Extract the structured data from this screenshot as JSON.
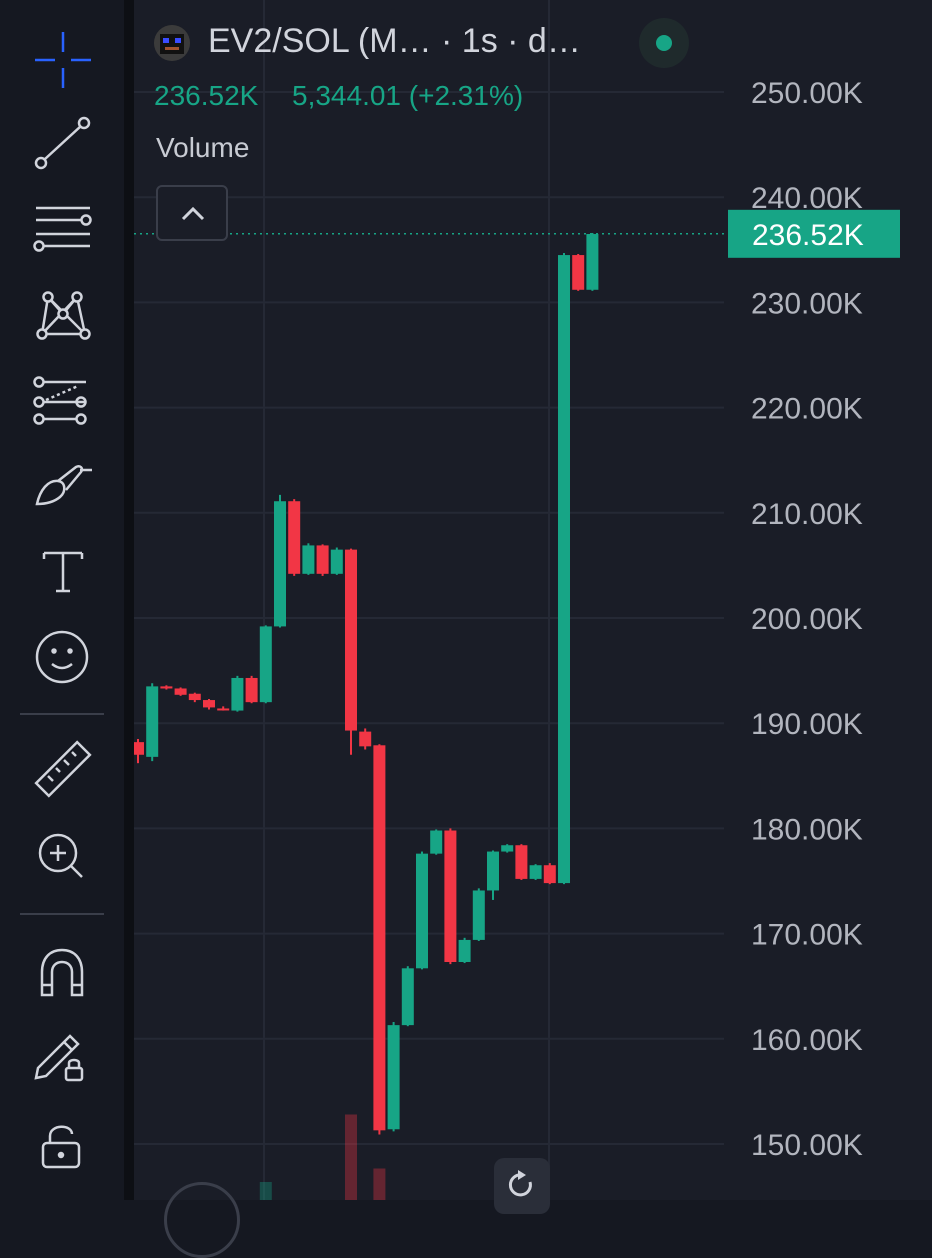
{
  "header": {
    "title": "EV2/SOL (M… · 1s · d…",
    "price": "236.52K",
    "change": "5,344.01 (+2.31%)",
    "volume_label": "Volume",
    "live_color": "#17a586"
  },
  "toolbar": {
    "tools": [
      "crosshair-icon",
      "trend-line-icon",
      "horizontal-lines-icon",
      "pattern-icon",
      "fib-lines-icon",
      "brush-icon",
      "text-icon",
      "emoji-icon",
      "ruler-icon",
      "zoom-in-icon",
      "magnet-icon",
      "lock-drawings-icon",
      "unlock-icon"
    ]
  },
  "colors": {
    "up": "#17a586",
    "down": "#f23645",
    "accent": "#2962ff",
    "background": "#1a1d27"
  },
  "chart_data": {
    "type": "candlestick",
    "symbol": "EV2/SOL",
    "interval": "1s",
    "last_price": 236520,
    "last_price_label": "236.52K",
    "y_ticks": [
      "250.00K",
      "240.00K",
      "230.00K",
      "220.00K",
      "210.00K",
      "200.00K",
      "190.00K",
      "180.00K",
      "170.00K",
      "160.00K",
      "150.00K"
    ],
    "y_tick_values": [
      250000,
      240000,
      230000,
      220000,
      210000,
      200000,
      190000,
      180000,
      170000,
      160000,
      150000
    ],
    "ylim": [
      145000,
      258000
    ],
    "grid": true,
    "candles": [
      {
        "o": 188200,
        "h": 188500,
        "c": 187000,
        "l": 186200
      },
      {
        "o": 186800,
        "h": 193800,
        "c": 193500,
        "l": 186400
      },
      {
        "o": 193500,
        "h": 193600,
        "c": 193300,
        "l": 193200
      },
      {
        "o": 193300,
        "h": 193400,
        "c": 192700,
        "l": 192600
      },
      {
        "o": 192800,
        "h": 192900,
        "c": 192200,
        "l": 192000
      },
      {
        "o": 192200,
        "h": 192300,
        "c": 191500,
        "l": 191300
      },
      {
        "o": 191400,
        "h": 191600,
        "c": 191300,
        "l": 191200
      },
      {
        "o": 191200,
        "h": 194500,
        "c": 194300,
        "l": 191100
      },
      {
        "o": 194300,
        "h": 194500,
        "c": 192000,
        "l": 191900
      },
      {
        "o": 192000,
        "h": 199300,
        "c": 199200,
        "l": 191900
      },
      {
        "o": 199200,
        "h": 211700,
        "c": 211100,
        "l": 199100
      },
      {
        "o": 211100,
        "h": 211300,
        "c": 204200,
        "l": 204000
      },
      {
        "o": 204200,
        "h": 207100,
        "c": 206900,
        "l": 204100
      },
      {
        "o": 206900,
        "h": 207000,
        "c": 204200,
        "l": 204000
      },
      {
        "o": 204200,
        "h": 206700,
        "c": 206500,
        "l": 204100
      },
      {
        "o": 206500,
        "h": 206600,
        "c": 189300,
        "l": 187000
      },
      {
        "o": 189200,
        "h": 189500,
        "c": 187800,
        "l": 187500
      },
      {
        "o": 187900,
        "h": 188000,
        "c": 151300,
        "l": 150900
      },
      {
        "o": 151400,
        "h": 161600,
        "c": 161300,
        "l": 151200
      },
      {
        "o": 161300,
        "h": 166900,
        "c": 166700,
        "l": 161200
      },
      {
        "o": 166700,
        "h": 177800,
        "c": 177600,
        "l": 166600
      },
      {
        "o": 177600,
        "h": 179900,
        "c": 179800,
        "l": 177500
      },
      {
        "o": 179800,
        "h": 180000,
        "c": 167300,
        "l": 167100
      },
      {
        "o": 167300,
        "h": 169600,
        "c": 169400,
        "l": 167200
      },
      {
        "o": 169400,
        "h": 174300,
        "c": 174100,
        "l": 169300
      },
      {
        "o": 174100,
        "h": 177900,
        "c": 177800,
        "l": 173200
      },
      {
        "o": 177800,
        "h": 178500,
        "c": 178400,
        "l": 177700
      },
      {
        "o": 178400,
        "h": 178500,
        "c": 175200,
        "l": 175100
      },
      {
        "o": 175200,
        "h": 176600,
        "c": 176500,
        "l": 175100
      },
      {
        "o": 176500,
        "h": 176700,
        "c": 174800,
        "l": 174700
      },
      {
        "o": 174800,
        "h": 234700,
        "c": 234500,
        "l": 174700
      },
      {
        "o": 234500,
        "h": 234600,
        "c": 231200,
        "l": 231100
      },
      {
        "o": 231200,
        "h": 236600,
        "c": 236500,
        "l": 231100
      }
    ],
    "volume": [
      {
        "value": 0.95,
        "dir": "down",
        "index": 15
      },
      {
        "value": 0.2,
        "dir": "up",
        "index": 9
      },
      {
        "value": 0.35,
        "dir": "down",
        "index": 17
      }
    ]
  }
}
